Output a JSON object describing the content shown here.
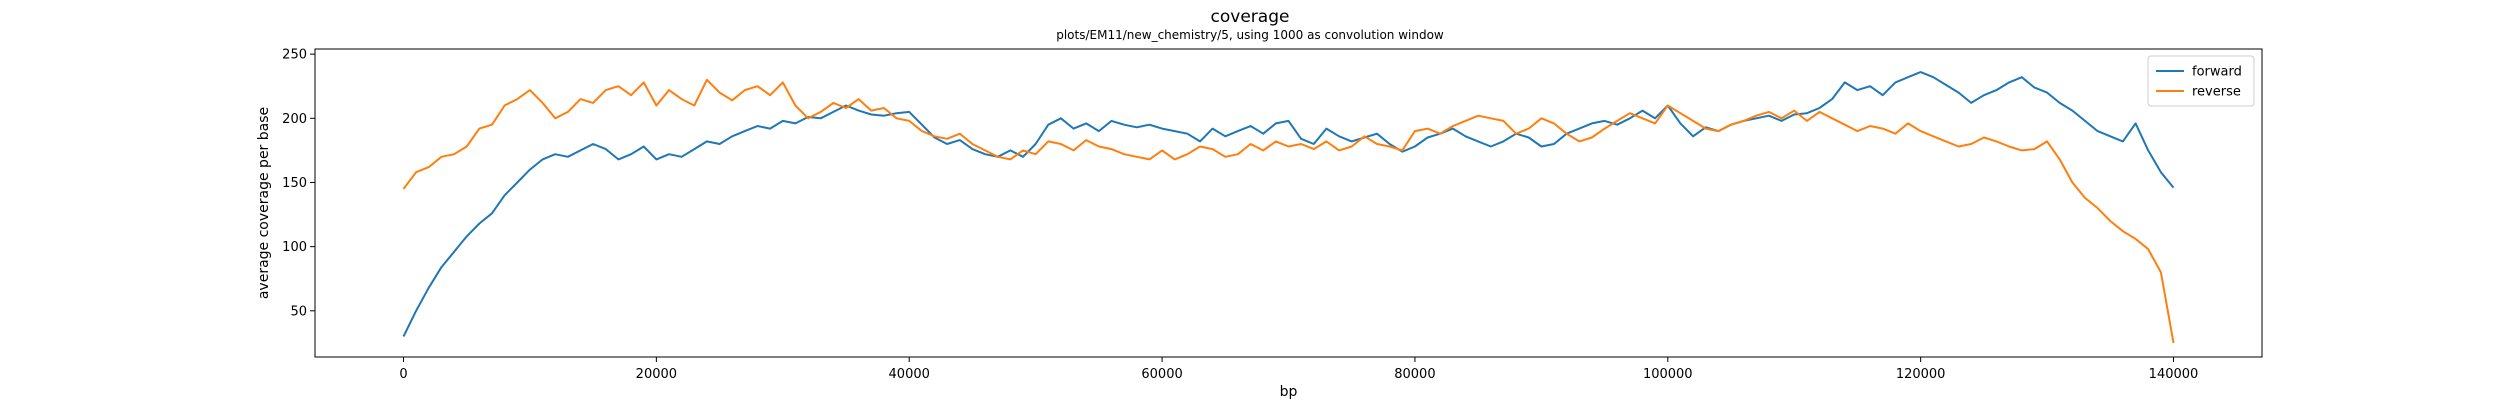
{
  "chart_data": {
    "type": "line",
    "title": "coverage",
    "subtitle": "plots/EM11/new_chemistry/5, using 1000 as convolution window",
    "xlabel": "bp",
    "ylabel": "average coverage per base",
    "xlim": [
      -7000,
      147000
    ],
    "ylim": [
      14,
      254
    ],
    "xticks": [
      0,
      20000,
      40000,
      60000,
      80000,
      100000,
      120000,
      140000
    ],
    "xtick_labels": [
      "0",
      "20000",
      "40000",
      "60000",
      "80000",
      "100000",
      "120000",
      "140000"
    ],
    "yticks": [
      50,
      100,
      150,
      200,
      250
    ],
    "ytick_labels": [
      "50",
      "100",
      "150",
      "200",
      "250"
    ],
    "grid": false,
    "legend_position": "top-right",
    "series": [
      {
        "name": "forward",
        "color": "#1f77b4",
        "x": [
          0,
          1000,
          2000,
          3000,
          4000,
          5000,
          6000,
          7000,
          8000,
          9000,
          10000,
          11000,
          12000,
          13000,
          14000,
          15000,
          16000,
          17000,
          18000,
          19000,
          20000,
          21000,
          22000,
          23000,
          24000,
          25000,
          26000,
          27000,
          28000,
          29000,
          30000,
          31000,
          32000,
          33000,
          34000,
          35000,
          36000,
          37000,
          38000,
          39000,
          40000,
          41000,
          42000,
          43000,
          44000,
          45000,
          46000,
          47000,
          48000,
          49000,
          50000,
          51000,
          52000,
          53000,
          54000,
          55000,
          56000,
          57000,
          58000,
          59000,
          60000,
          61000,
          62000,
          63000,
          64000,
          65000,
          66000,
          67000,
          68000,
          69000,
          70000,
          71000,
          72000,
          73000,
          74000,
          75000,
          76000,
          77000,
          78000,
          79000,
          80000,
          81000,
          82000,
          83000,
          84000,
          85000,
          86000,
          87000,
          88000,
          89000,
          90000,
          91000,
          92000,
          93000,
          94000,
          95000,
          96000,
          97000,
          98000,
          99000,
          100000,
          101000,
          102000,
          103000,
          104000,
          105000,
          106000,
          107000,
          108000,
          109000,
          110000,
          111000,
          112000,
          113000,
          114000,
          115000,
          116000,
          117000,
          118000,
          119000,
          120000,
          121000,
          122000,
          123000,
          124000,
          125000,
          126000,
          127000,
          128000,
          129000,
          130000,
          131000,
          132000,
          133000,
          134000,
          135000,
          136000,
          137000,
          138000,
          139000,
          140000
        ],
        "y": [
          30,
          50,
          68,
          84,
          96,
          108,
          118,
          126,
          140,
          150,
          160,
          168,
          172,
          170,
          175,
          180,
          176,
          168,
          172,
          178,
          168,
          172,
          170,
          176,
          182,
          180,
          186,
          190,
          194,
          192,
          198,
          196,
          201,
          200,
          205,
          210,
          206,
          203,
          202,
          204,
          205,
          195,
          185,
          180,
          183,
          176,
          172,
          170,
          175,
          170,
          180,
          195,
          200,
          192,
          196,
          190,
          198,
          195,
          193,
          195,
          192,
          190,
          188,
          182,
          192,
          186,
          190,
          194,
          188,
          196,
          198,
          184,
          180,
          192,
          186,
          182,
          185,
          188,
          180,
          174,
          178,
          185,
          188,
          192,
          186,
          182,
          178,
          182,
          188,
          185,
          178,
          180,
          188,
          192,
          196,
          198,
          195,
          200,
          206,
          200,
          210,
          196,
          186,
          193,
          190,
          195,
          198,
          200,
          202,
          198,
          203,
          204,
          208,
          215,
          228,
          222,
          225,
          218,
          228,
          232,
          236,
          232,
          226,
          220,
          212,
          218,
          222,
          228,
          232,
          224,
          220,
          212,
          206,
          198,
          190,
          186,
          182,
          196,
          175,
          158,
          146
        ]
      },
      {
        "name": "reverse",
        "color": "#ff7f0e",
        "x": [
          0,
          1000,
          2000,
          3000,
          4000,
          5000,
          6000,
          7000,
          8000,
          9000,
          10000,
          11000,
          12000,
          13000,
          14000,
          15000,
          16000,
          17000,
          18000,
          19000,
          20000,
          21000,
          22000,
          23000,
          24000,
          25000,
          26000,
          27000,
          28000,
          29000,
          30000,
          31000,
          32000,
          33000,
          34000,
          35000,
          36000,
          37000,
          38000,
          39000,
          40000,
          41000,
          42000,
          43000,
          44000,
          45000,
          46000,
          47000,
          48000,
          49000,
          50000,
          51000,
          52000,
          53000,
          54000,
          55000,
          56000,
          57000,
          58000,
          59000,
          60000,
          61000,
          62000,
          63000,
          64000,
          65000,
          66000,
          67000,
          68000,
          69000,
          70000,
          71000,
          72000,
          73000,
          74000,
          75000,
          76000,
          77000,
          78000,
          79000,
          80000,
          81000,
          82000,
          83000,
          84000,
          85000,
          86000,
          87000,
          88000,
          89000,
          90000,
          91000,
          92000,
          93000,
          94000,
          95000,
          96000,
          97000,
          98000,
          99000,
          100000,
          101000,
          102000,
          103000,
          104000,
          105000,
          106000,
          107000,
          108000,
          109000,
          110000,
          111000,
          112000,
          113000,
          114000,
          115000,
          116000,
          117000,
          118000,
          119000,
          120000,
          121000,
          122000,
          123000,
          124000,
          125000,
          126000,
          127000,
          128000,
          129000,
          130000,
          131000,
          132000,
          133000,
          134000,
          135000,
          136000,
          137000,
          138000,
          139000,
          140000
        ],
        "y": [
          145,
          158,
          162,
          170,
          172,
          178,
          192,
          195,
          210,
          215,
          222,
          212,
          200,
          205,
          215,
          212,
          222,
          225,
          218,
          228,
          210,
          222,
          215,
          210,
          230,
          220,
          214,
          222,
          225,
          218,
          228,
          210,
          200,
          205,
          212,
          208,
          215,
          206,
          208,
          200,
          198,
          190,
          186,
          184,
          188,
          180,
          175,
          170,
          168,
          175,
          172,
          182,
          180,
          175,
          183,
          178,
          176,
          172,
          170,
          168,
          175,
          168,
          172,
          178,
          176,
          170,
          172,
          180,
          175,
          182,
          178,
          180,
          176,
          182,
          175,
          178,
          186,
          180,
          178,
          175,
          190,
          192,
          188,
          194,
          198,
          202,
          200,
          198,
          188,
          192,
          200,
          196,
          188,
          182,
          185,
          192,
          198,
          204,
          200,
          196,
          210,
          204,
          198,
          192,
          190,
          195,
          198,
          202,
          205,
          200,
          206,
          198,
          205,
          200,
          195,
          190,
          194,
          192,
          188,
          196,
          190,
          186,
          182,
          178,
          180,
          185,
          182,
          178,
          175,
          176,
          182,
          168,
          150,
          138,
          130,
          120,
          112,
          106,
          98,
          80,
          25
        ]
      }
    ]
  }
}
